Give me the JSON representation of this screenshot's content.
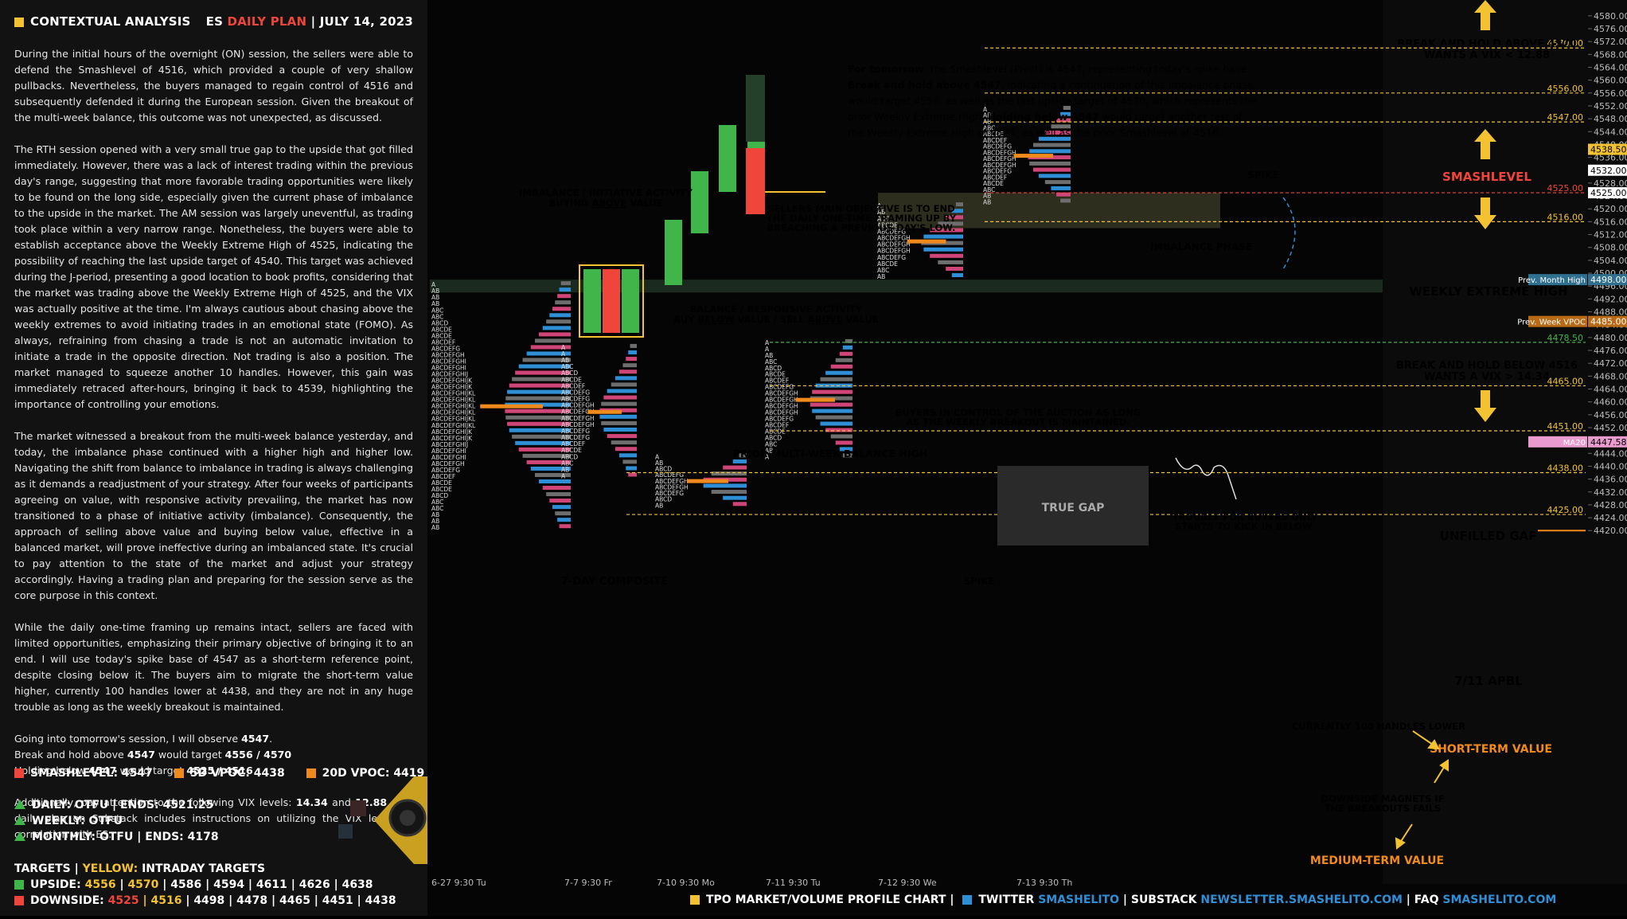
{
  "header": {
    "title": "CONTEXTUAL ANALYSIS",
    "plan_prefix": "ES",
    "plan_name": "DAILY PLAN",
    "sep": "|",
    "date": "JULY 14, 2023"
  },
  "paragraphs": [
    "During the initial hours of the overnight (ON) session, the sellers were able to defend the Smashlevel of 4516, which provided a couple of very shallow pullbacks. Nevertheless, the buyers managed to regain control of 4516 and subsequently defended it during the European session. Given the breakout of the multi-week balance, this outcome was not unexpected, as discussed.",
    "The RTH session opened with a very small true gap to the upside that got filled immediately. However, there was a lack of interest trading within the previous day's range, suggesting that more favorable trading opportunities were likely to be found on the long side, especially given the current phase of imbalance to the upside in the market. The AM session was largely uneventful, as trading took place within a very narrow range. Nonetheless, the buyers were able to establish acceptance above the Weekly Extreme High of 4525, indicating the possibility of reaching the last upside target of 4540. This target was achieved during the J-period, presenting a good location to book profits, considering that the market was trading above the Weekly Extreme High of 4525, and the VIX was actually positive at the time. I'm always cautious about chasing above the weekly extremes to avoid initiating trades in an emotional state (FOMO). As always, refraining from chasing a trade is not an automatic invitation to initiate a trade in the opposite direction. Not trading is also a position. The market managed to squeeze another 10 handles. However, this gain was immediately retraced after-hours, bringing it back to 4539, highlighting the importance of controlling your emotions.",
    "The market witnessed a breakout from the multi-week balance yesterday, and today, the imbalance phase continued with a higher high and higher low. Navigating the shift from balance to imbalance in trading is always challenging as it demands a readjustment of your strategy. After four weeks of participants agreeing on value, with responsive activity prevailing, the market has now transitioned to a phase of initiative activity (imbalance). Consequently, the approach of selling above value and buying below value, effective in a balanced market, will prove ineffective during an imbalanced state. It's crucial to pay attention to the state of the market and adjust your strategy accordingly. Having a trading plan and preparing for the session serve as the core purpose in this context.",
    "While the daily one-time framing up remains intact, sellers are faced with limited opportunities, emphasizing their primary objective of bringing it to an end. I will use today's spike base of 4547 as a short-term reference point, despite closing below it. The buyers aim to migrate the short-term value higher, currently 100 handles lower at 4438, and they are not in any huge trouble as long as the weekly breakout is maintained."
  ],
  "outlook": {
    "l1a": "Going into tomorrow's session, I will observe ",
    "l1b": "4547",
    "l1c": ".",
    "l2a": "Break and hold above ",
    "l2b": "4547",
    "l2c": " would target ",
    "l2d": "4556 / 4570",
    "l3a": "Holding below ",
    "l3b": "4547",
    "l3c": " would target ",
    "l3d": "4525 / 4516"
  },
  "vix_note": {
    "a": "Additionally, pay attention to the following VIX levels: ",
    "b": "14.34",
    "c": " and ",
    "d": "12.88",
    "e": ". The daily plan on Substack includes instructions on utilizing the VIX levels in correlation with ES."
  },
  "levels": {
    "smash": "SMASHLEVEL: 4547",
    "vpoc5": "5D VPOC: 4438",
    "vpoc20": "20D VPOC: 4419"
  },
  "trend": {
    "daily": "DAILY: OTFU  |  ENDS: 4521.25",
    "weekly": "WEEKLY: OTFU",
    "monthly": "MONTHLY: OTFU  |  ENDS: 4178"
  },
  "targets": {
    "head_a": "TARGETS",
    "sep": "|",
    "head_b": "YELLOW:",
    "head_c": "INTRADAY TARGETS",
    "up_label": "UPSIDE:",
    "up_y1": "4556",
    "up_y2": "4570",
    "up_rest": "| 4586 | 4594 | 4611 | 4626 | 4638",
    "dn_label": "DOWNSIDE:",
    "dn_y1": "4525",
    "dn_y2": "4516",
    "dn_rest": "| 4498 | 4478 | 4465 | 4451 | 4438"
  },
  "colors": {
    "accent": "#f2c232",
    "red": "#f0453a",
    "blue": "#2f8fd6",
    "green": "#3fb54a",
    "orange": "#f08a1c"
  },
  "chart_data": {
    "type": "table",
    "y_range": [
      4418,
      4583
    ],
    "y_ticks": [
      4420,
      4424,
      4428,
      4432,
      4436,
      4440,
      4444,
      4448,
      4452,
      4456,
      4460,
      4464,
      4468,
      4472,
      4476,
      4480,
      4484,
      4488,
      4492,
      4496,
      4500,
      4504,
      4508,
      4512,
      4516,
      4520,
      4524,
      4528,
      4532,
      4536,
      4540,
      4544,
      4548,
      4552,
      4556,
      4560,
      4564,
      4568,
      4572,
      4576,
      4580
    ],
    "price_badges": [
      {
        "text": "4538.50",
        "value": 4538.5,
        "color": "#f2c232"
      },
      {
        "text": "4532.00",
        "value": 4532,
        "color": "#ffffff"
      },
      {
        "text": "4525.00",
        "value": 4525,
        "color": "#ffffff"
      },
      {
        "text": "4498.00",
        "value": 4498,
        "color": "#2f6f8f",
        "label": "Prev. Month High"
      },
      {
        "text": "4485.00",
        "value": 4485,
        "color": "#b86a14",
        "label": "Prev. Week VPOC"
      },
      {
        "text": "4447.58",
        "value": 4447.58,
        "color": "#e99bd0",
        "label": "MA20"
      }
    ],
    "levels": [
      {
        "value": 4570,
        "text": "4570.00",
        "color": "#f2c232"
      },
      {
        "value": 4556,
        "text": "4556.00",
        "color": "#f2c232"
      },
      {
        "value": 4547,
        "text": "4547.00",
        "color": "#f2c232"
      },
      {
        "value": 4525,
        "text": "4525.00",
        "color": "#f0453a"
      },
      {
        "value": 4516,
        "text": "4516.00",
        "color": "#f2c232"
      },
      {
        "value": 4478.5,
        "text": "4478.50",
        "color": "#3fb54a"
      },
      {
        "value": 4465,
        "text": "4465.00",
        "color": "#f2c232"
      },
      {
        "value": 4451,
        "text": "4451.00",
        "color": "#f2c232"
      },
      {
        "value": 4438,
        "text": "4438.00",
        "color": "#f2c232"
      },
      {
        "value": 4425,
        "text": "4425.00",
        "color": "#f2c232"
      }
    ],
    "sessions": [
      {
        "label": "6-27  9:30 Tu",
        "low": 4420,
        "high": 4497.5
      },
      {
        "label": "7-7  9:30 Fr",
        "low": 4436,
        "high": 4478
      },
      {
        "label": "7-10  9:30 Mo",
        "low": 4427,
        "high": 4444
      },
      {
        "label": "7-11  9:30 Tu",
        "low": 4442,
        "high": 4479.5
      },
      {
        "label": "7-12  9:30 We",
        "low": 4498,
        "high": 4522
      },
      {
        "label": "7-13  9:30 Th",
        "low": 4521.25,
        "high": 4552
      }
    ],
    "annotations": {
      "smashlevel": "SMASHLEVEL",
      "weekly_extreme_high": "WEEKLY EXTREME HIGH",
      "break_above_1": "BREAK AND HOLD ABOVE 4570",
      "break_above_2": "WANTS A VIX < 12.88",
      "break_below_1": "BREAK AND HOLD BELOW 4516",
      "break_below_2": "WANTS A VIX > 14.34",
      "unfilled_gap": "UNFILLED GAP",
      "apbl": "7/11 APBL",
      "handles": "CURRENTLY 100 HANDLES LOWER",
      "short_term_value": "SHORT-TERM VALUE",
      "magnets_1": "DOWNSIDE MAGNETS IF",
      "magnets_2": "THE BREAKOUTS FAILS",
      "medium_term_value": "MEDIUM-TERM VALUE",
      "spike_1": "SPIKE",
      "spike_2": "SPIKE",
      "imbalance_phase": "IMBALANCE PHASE",
      "buyers_control_1": "BUYERS IN CONTROL OF THE AUCTION AS LONG",
      "buyers_control_2": "AS THE WEEKLY BREAKOUT IS MAINTAINED.",
      "trouble_1": "TROUBLE FOR BUYERS ONLY",
      "trouble_2": "STARTS TO KICK IN BELOW.",
      "true_gap": "TRUE GAP",
      "prior_balance": "PRIOR MULTI-WEEK BALANCE HIGH",
      "composite": "7-DAY COMPOSITE",
      "imbalance_init_1": "IMBALANCE / INITIATIVE ACTIVITY",
      "imbalance_init_2a": "BUYING ",
      "imbalance_init_2b": "ABOVE",
      "imbalance_init_2c": " VALUE",
      "balance_resp_1": "BALANCE / RESPONSIVE ACTIVITY",
      "balance_resp_2a": "BUY ",
      "balance_resp_2b": "BELOW",
      "balance_resp_2c": " VALUE / SELL ",
      "balance_resp_2d": "ABOVE",
      "balance_resp_2e": " VALUE",
      "sellers_1": "SELLERS MAIN OBJECTIVE IS TO END",
      "sellers_2": "THE DAILY ONE-TIME FRAMING UP BY",
      "sellers_3": "BREACHING A PREVIOUS DAY'S LOW."
    },
    "tomorrow": {
      "l1a": "For tomorrow",
      "l1b": ", the Smashlevel (Pivot) is 4547, representing today's spike base.",
      "l2a": "Break and hold above 4547",
      "l2b": ", indicating a continuation of this imbalance phase,",
      "l3": "would target 4556, as well as the last upside target of 4570, which represents the",
      "l4a": "prior Weekly Extreme High. ",
      "l4b": "Holding below 4547",
      "l4c": " would target another test of",
      "l5": "the Weekly Extreme High of 4525, as well as the prior Smashlevel at 4516."
    }
  },
  "footer": {
    "tpo": "TPO MARKET/VOLUME PROFILE CHART",
    "sep1": "|",
    "twitter": "TWITTER",
    "twitter_handle": "SMASHELITO",
    "sep2": "|",
    "substack": "SUBSTACK",
    "substack_url": "NEWSLETTER.SMASHELITO.COM",
    "sep3": "|",
    "faq": "FAQ",
    "faq_url": "SMASHELITO.COM"
  }
}
